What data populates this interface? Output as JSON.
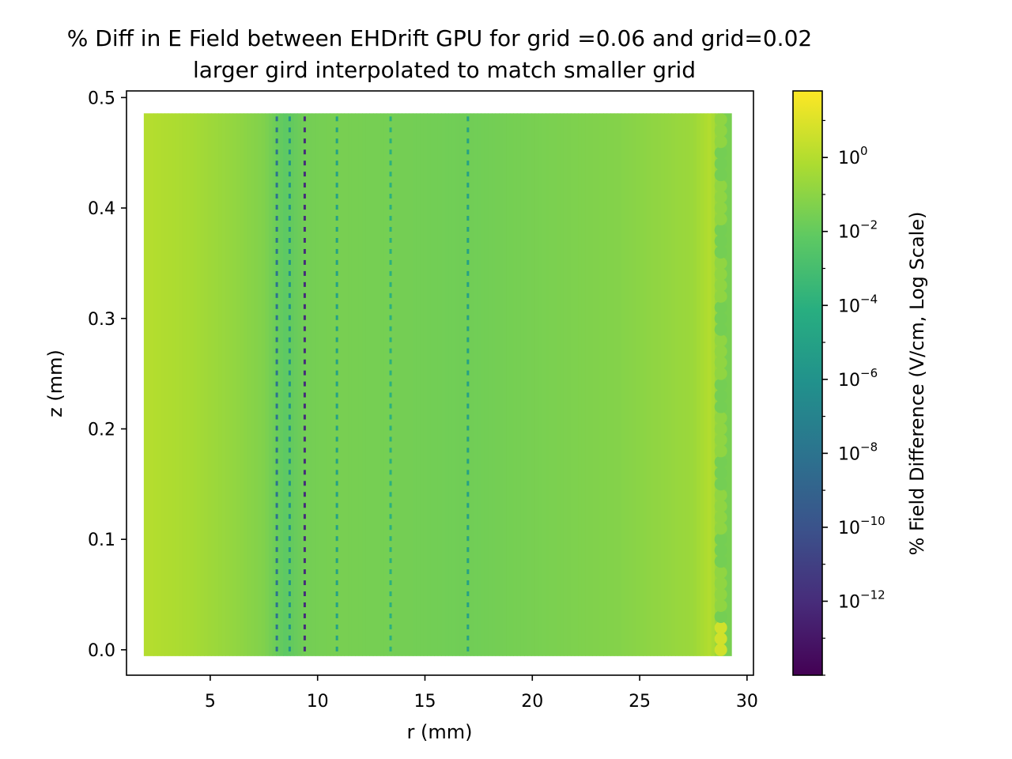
{
  "chart_data": {
    "type": "scatter",
    "title": [
      "% Diff in E Field between EHDrift GPU for grid =0.06 and grid=0.02",
      "larger gird interpolated to match smaller grid"
    ],
    "xlabel": "r (mm)",
    "ylabel": "z (mm)",
    "xlim": [
      1.1,
      30.3
    ],
    "ylim": [
      -0.023,
      0.506
    ],
    "xticks": [
      5,
      10,
      15,
      20,
      25,
      30
    ],
    "xtick_labels": [
      "5",
      "10",
      "15",
      "20",
      "25",
      "30"
    ],
    "yticks": [
      0.0,
      0.1,
      0.2,
      0.3,
      0.4,
      0.5
    ],
    "ytick_labels": [
      "0.0",
      "0.1",
      "0.2",
      "0.3",
      "0.4",
      "0.5"
    ],
    "grid": false,
    "legend": "none",
    "colormap": "viridis",
    "colorbar": {
      "label": "% Field Difference (V/cm, Log Scale)",
      "scale": "log",
      "range_log10": [
        -14,
        1.8
      ],
      "ticks_log10": [
        0,
        -2,
        -4,
        -6,
        -8,
        -10,
        -12
      ]
    },
    "data_extent": {
      "r": [
        2.2,
        29.0
      ],
      "z": [
        0.0,
        0.48
      ]
    },
    "color_profile_log10_by_r": [
      {
        "r": 2.2,
        "log10_pct": 0.0
      },
      {
        "r": 4.0,
        "log10_pct": -0.3
      },
      {
        "r": 6.0,
        "log10_pct": -0.8
      },
      {
        "r": 7.5,
        "log10_pct": -1.3
      },
      {
        "r": 8.5,
        "log10_pct": -2.2
      },
      {
        "r": 9.5,
        "log10_pct": -1.6
      },
      {
        "r": 11.0,
        "log10_pct": -1.5
      },
      {
        "r": 14.0,
        "log10_pct": -1.6
      },
      {
        "r": 17.0,
        "log10_pct": -1.7
      },
      {
        "r": 20.0,
        "log10_pct": -1.5
      },
      {
        "r": 24.0,
        "log10_pct": -1.2
      },
      {
        "r": 27.5,
        "log10_pct": -0.6
      },
      {
        "r": 28.3,
        "log10_pct": 0.0
      },
      {
        "r": 29.0,
        "log10_pct": -1.7
      }
    ],
    "low_value_streaks": [
      {
        "r": 8.1,
        "log10_pct": -8.0
      },
      {
        "r": 8.7,
        "log10_pct": -6.0
      },
      {
        "r": 9.4,
        "log10_pct": -12.0
      },
      {
        "r": 10.9,
        "log10_pct": -5.0
      },
      {
        "r": 13.4,
        "log10_pct": -4.0
      },
      {
        "r": 17.0,
        "log10_pct": -5.0
      }
    ]
  }
}
